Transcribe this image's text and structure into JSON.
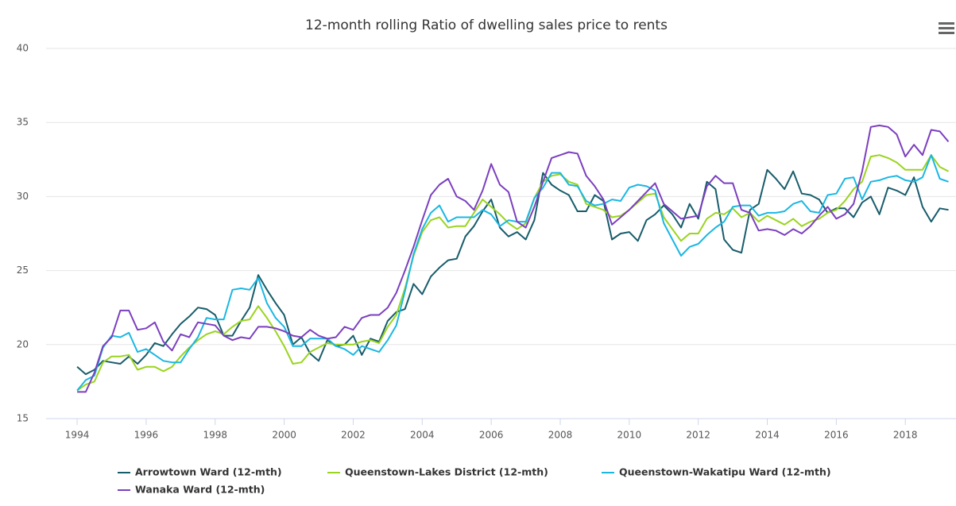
{
  "chart_data": {
    "type": "line",
    "title": "12-month rolling Ratio of dwelling sales price to rents",
    "x": [
      1994,
      1994.25,
      1994.5,
      1994.75,
      1995,
      1995.25,
      1995.5,
      1995.75,
      1996,
      1996.25,
      1996.5,
      1996.75,
      1997,
      1997.25,
      1997.5,
      1997.75,
      1998,
      1998.25,
      1998.5,
      1998.75,
      1999,
      1999.25,
      1999.5,
      1999.75,
      2000,
      2000.25,
      2000.5,
      2000.75,
      2001,
      2001.25,
      2001.5,
      2001.75,
      2002,
      2002.25,
      2002.5,
      2002.75,
      2003,
      2003.25,
      2003.5,
      2003.75,
      2004,
      2004.25,
      2004.5,
      2004.75,
      2005,
      2005.25,
      2005.5,
      2005.75,
      2006,
      2006.25,
      2006.5,
      2006.75,
      2007,
      2007.25,
      2007.5,
      2007.75,
      2008,
      2008.25,
      2008.5,
      2008.75,
      2009,
      2009.25,
      2009.5,
      2009.75,
      2010,
      2010.25,
      2010.5,
      2010.75,
      2011,
      2011.25,
      2011.5,
      2011.75,
      2012,
      2012.25,
      2012.5,
      2012.75,
      2013,
      2013.25,
      2013.5,
      2013.75,
      2014,
      2014.25,
      2014.5,
      2014.75,
      2015,
      2015.25,
      2015.5,
      2015.75,
      2016,
      2016.25,
      2016.5,
      2016.75,
      2017,
      2017.25,
      2017.5,
      2017.75,
      2018,
      2018.25,
      2018.5,
      2018.75,
      2019,
      2019.25
    ],
    "series": [
      {
        "name": "Arrowtown Ward (12-mth)",
        "color": "#175c6b",
        "values": [
          18.5,
          18.0,
          18.3,
          18.9,
          18.8,
          18.7,
          19.2,
          18.7,
          19.3,
          20.1,
          19.9,
          20.7,
          21.4,
          21.9,
          22.5,
          22.4,
          22.0,
          20.6,
          20.6,
          21.6,
          22.5,
          24.7,
          23.7,
          22.8,
          22.0,
          20.0,
          20.5,
          19.4,
          18.9,
          20.3,
          19.9,
          20.0,
          20.6,
          19.3,
          20.4,
          20.2,
          21.6,
          22.2,
          22.4,
          24.1,
          23.4,
          24.6,
          25.2,
          25.7,
          25.8,
          27.3,
          28.0,
          29.0,
          29.8,
          27.9,
          27.3,
          27.6,
          27.1,
          28.4,
          31.6,
          30.8,
          30.4,
          30.1,
          29.0,
          29.0,
          30.1,
          29.7,
          27.1,
          27.5,
          27.6,
          27.0,
          28.4,
          28.8,
          29.4,
          28.8,
          27.9,
          29.5,
          28.5,
          31.0,
          30.5,
          27.1,
          26.4,
          26.2,
          29.1,
          29.5,
          31.8,
          31.2,
          30.5,
          31.7,
          30.2,
          30.1,
          29.8,
          28.9,
          29.2,
          29.2,
          28.6,
          29.6,
          30.0,
          28.8,
          30.6,
          30.4,
          30.1,
          31.3,
          29.3,
          28.3,
          29.2,
          29.1
        ]
      },
      {
        "name": "Queenstown-Lakes District (12-mth)",
        "color": "#9ad41e",
        "values": [
          16.9,
          17.3,
          17.5,
          18.8,
          19.2,
          19.2,
          19.3,
          18.3,
          18.5,
          18.5,
          18.2,
          18.5,
          19.2,
          19.8,
          20.3,
          20.7,
          20.9,
          20.7,
          21.2,
          21.6,
          21.7,
          22.6,
          21.8,
          20.9,
          19.9,
          18.7,
          18.8,
          19.5,
          19.8,
          20.1,
          20.0,
          20.0,
          20.0,
          20.2,
          20.3,
          20.1,
          21.2,
          22.0,
          23.8,
          26.0,
          27.6,
          28.4,
          28.6,
          27.9,
          28.0,
          28.0,
          28.9,
          29.8,
          29.3,
          28.8,
          28.2,
          27.8,
          28.2,
          29.9,
          31.0,
          31.4,
          31.5,
          31.0,
          30.8,
          29.5,
          29.3,
          29.1,
          28.6,
          28.7,
          29.1,
          29.6,
          30.1,
          30.2,
          28.6,
          27.8,
          27.0,
          27.5,
          27.5,
          28.5,
          28.9,
          28.8,
          29.2,
          28.6,
          28.9,
          28.3,
          28.7,
          28.4,
          28.1,
          28.5,
          28.0,
          28.3,
          28.5,
          28.9,
          29.1,
          29.7,
          30.5,
          31.0,
          32.7,
          32.8,
          32.6,
          32.3,
          31.8,
          31.8,
          31.8,
          32.8,
          32.0,
          31.7
        ]
      },
      {
        "name": "Queenstown-Wakatipu Ward (12-mth)",
        "color": "#1ab7e3",
        "values": [
          16.9,
          17.6,
          17.9,
          19.8,
          20.6,
          20.5,
          20.8,
          19.5,
          19.7,
          19.3,
          18.9,
          18.8,
          18.8,
          19.7,
          20.5,
          21.8,
          21.7,
          21.7,
          23.7,
          23.8,
          23.7,
          24.5,
          22.8,
          21.8,
          21.2,
          19.9,
          19.9,
          20.4,
          20.4,
          20.4,
          19.9,
          19.7,
          19.3,
          19.9,
          19.7,
          19.5,
          20.3,
          21.3,
          23.6,
          26.1,
          27.8,
          28.9,
          29.4,
          28.3,
          28.6,
          28.6,
          28.6,
          29.1,
          28.8,
          28.0,
          28.4,
          28.3,
          28.3,
          29.9,
          30.6,
          31.6,
          31.6,
          30.8,
          30.7,
          29.7,
          29.4,
          29.5,
          29.8,
          29.7,
          30.6,
          30.8,
          30.7,
          30.4,
          28.2,
          27.1,
          26.0,
          26.6,
          26.8,
          27.4,
          27.9,
          28.3,
          29.3,
          29.4,
          29.4,
          28.7,
          28.9,
          28.9,
          29.0,
          29.5,
          29.7,
          29.0,
          28.9,
          30.1,
          30.2,
          31.2,
          31.3,
          29.8,
          31.0,
          31.1,
          31.3,
          31.4,
          31.1,
          31.0,
          31.3,
          32.8,
          31.2,
          31.0
        ]
      },
      {
        "name": "Wanaka Ward (12-mth)",
        "color": "#7b3fbf",
        "values": [
          16.8,
          16.8,
          18.1,
          19.9,
          20.5,
          22.3,
          22.3,
          21.0,
          21.1,
          21.5,
          20.2,
          19.6,
          20.7,
          20.5,
          21.5,
          21.4,
          21.3,
          20.6,
          20.3,
          20.5,
          20.4,
          21.2,
          21.2,
          21.1,
          20.9,
          20.6,
          20.5,
          21.0,
          20.6,
          20.4,
          20.5,
          21.2,
          21.0,
          21.8,
          22.0,
          22.0,
          22.5,
          23.5,
          25.0,
          26.6,
          28.4,
          30.1,
          30.8,
          31.2,
          30.0,
          29.7,
          29.1,
          30.4,
          32.2,
          30.8,
          30.3,
          28.3,
          27.9,
          29.3,
          31.0,
          32.6,
          32.8,
          33.0,
          32.9,
          31.4,
          30.7,
          29.8,
          28.1,
          28.6,
          29.1,
          29.7,
          30.3,
          30.9,
          29.5,
          29.0,
          28.5,
          28.6,
          28.7,
          30.7,
          31.4,
          30.9,
          30.9,
          29.1,
          28.9,
          27.7,
          27.8,
          27.7,
          27.4,
          27.8,
          27.5,
          28.0,
          28.7,
          29.3,
          28.5,
          28.8,
          29.5,
          31.7,
          34.7,
          34.8,
          34.7,
          34.2,
          32.7,
          33.5,
          32.8,
          34.5,
          34.4,
          33.7
        ]
      }
    ],
    "xlim": [
      1993.1,
      2019.4
    ],
    "xticks": [
      1994,
      1996,
      1998,
      2000,
      2002,
      2004,
      2006,
      2008,
      2010,
      2012,
      2014,
      2016,
      2018
    ],
    "ylim": [
      15,
      40
    ],
    "yticks": [
      15,
      20,
      25,
      30,
      35,
      40
    ],
    "grid": true
  }
}
